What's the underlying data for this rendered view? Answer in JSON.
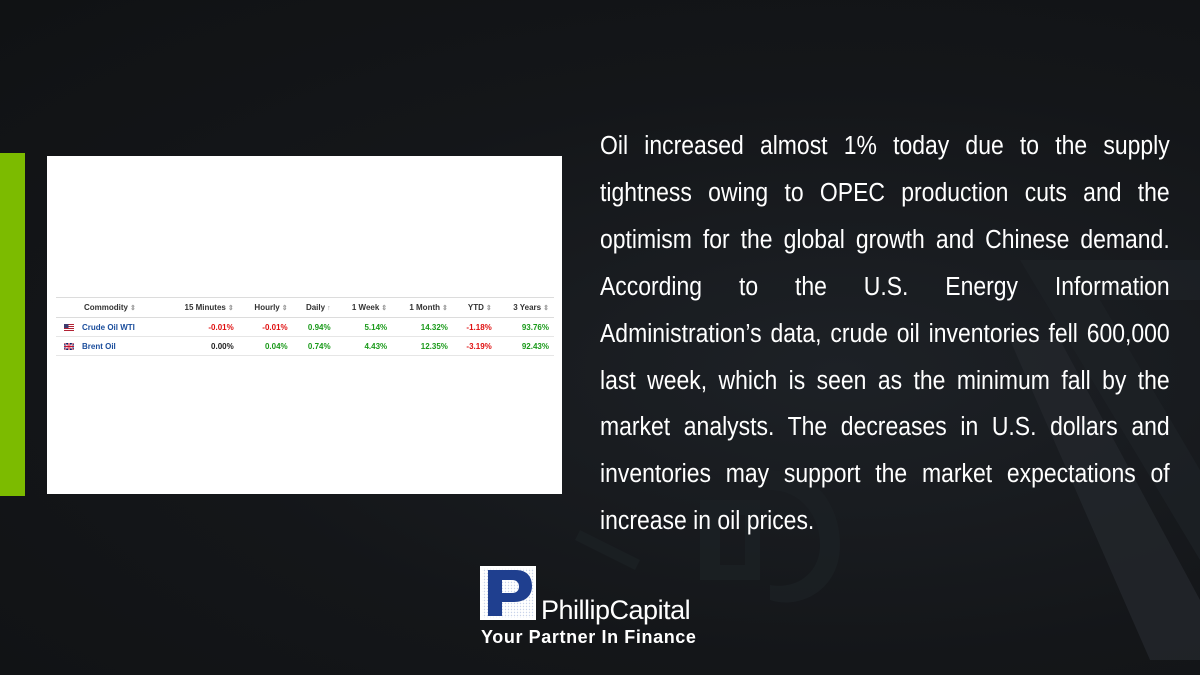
{
  "table": {
    "columns": [
      "Commodity",
      "15 Minutes",
      "Hourly",
      "Daily",
      "1 Week",
      "1 Month",
      "YTD",
      "3 Years"
    ],
    "sort_icons": [
      "⇕",
      "⇕",
      "⇕",
      "↑",
      "⇕",
      "⇕",
      "⇕",
      "⇕"
    ],
    "rows": [
      {
        "flag": "us-flag-icon",
        "name": "Crude Oil WTI",
        "values": [
          "-0.01%",
          "-0.01%",
          "0.94%",
          "5.14%",
          "14.32%",
          "-1.18%",
          "93.76%"
        ],
        "signs": [
          "neg",
          "neg",
          "pos",
          "pos",
          "pos",
          "neg",
          "pos"
        ]
      },
      {
        "flag": "uk-flag-icon",
        "name": "Brent Oil",
        "values": [
          "0.00%",
          "0.04%",
          "0.74%",
          "4.43%",
          "12.35%",
          "-3.19%",
          "92.43%"
        ],
        "signs": [
          "zero",
          "pos",
          "pos",
          "pos",
          "pos",
          "neg",
          "pos"
        ]
      }
    ]
  },
  "paragraph": "Oil increased almost 1% today due to the supply tightness owing to OPEC production cuts and the optimism for the global growth and Chinese demand. According to the U.S. Energy Information Administration’s data, crude oil inventories fell 600,000 last week, which is seen as the minimum fall by the market analysts. The decreases in U.S. dollars and inventories may support the market expectations of increase in oil prices.",
  "logo": {
    "letter": "P",
    "brand": "PhillipCapital",
    "tagline": "Your Partner In Finance"
  },
  "colors": {
    "accent": "#7cbb00",
    "positive": "#1a9a1a",
    "negative": "#e01010",
    "link": "#1a4d9c",
    "logo_blue": "#1f3f8f"
  }
}
